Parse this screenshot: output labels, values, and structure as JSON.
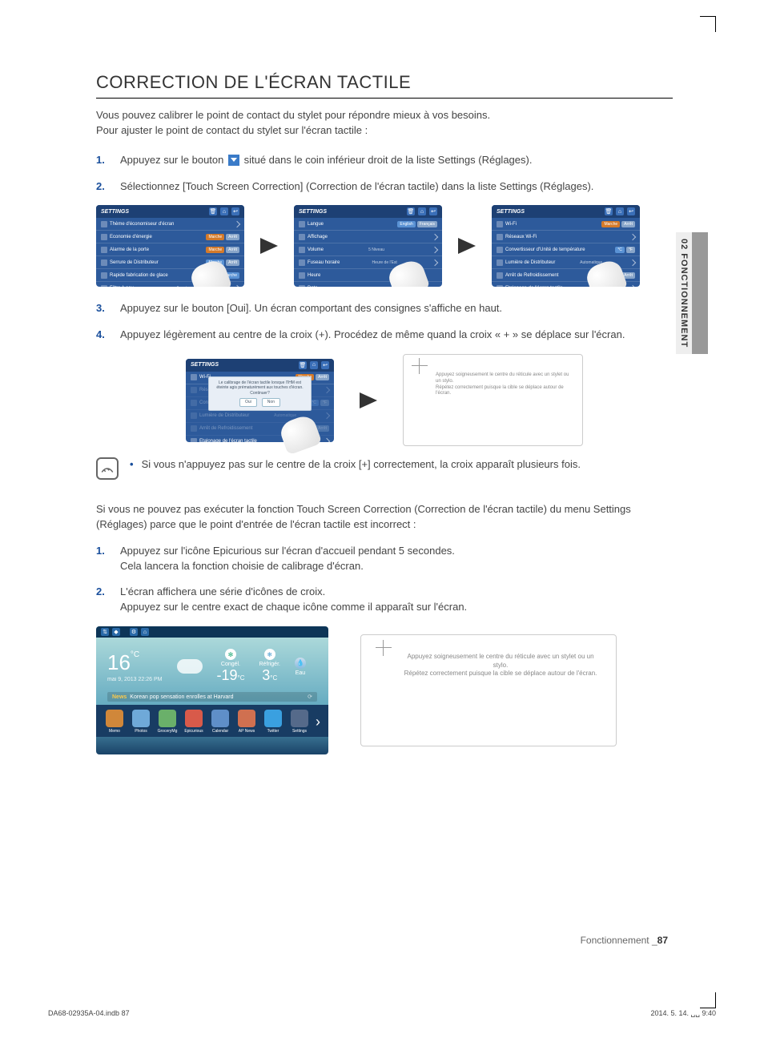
{
  "page": {
    "title": "CORRECTION DE L'ÉCRAN TACTILE",
    "intro1": "Vous pouvez calibrer le point de contact du stylet pour répondre mieux à vos besoins.",
    "intro2": "Pour ajuster le point de contact du stylet sur l'écran tactile :",
    "section_number": "87",
    "section_label": "Fonctionnement _",
    "side_tab": "02  FONCTIONNEMENT",
    "indd_left": "DA68-02935A-04.indb   87",
    "indd_right": "2014. 5. 14.   ␣␣ 9:40"
  },
  "steps1": [
    {
      "n": "1.",
      "pre": "Appuyez sur le bouton ",
      "post": " situé dans le coin inférieur droit de la liste Settings (Réglages)."
    },
    {
      "n": "2.",
      "txt": "Sélectionnez [Touch Screen Correction] (Correction de l'écran tactile) dans la liste Settings (Réglages)."
    }
  ],
  "steps2": [
    {
      "n": "3.",
      "txt": "Appuyez sur le bouton [Oui]. Un écran comportant des consignes s'affiche en haut."
    },
    {
      "n": "4.",
      "txt": "Appuyez légèrement au centre de la croix (+). Procédez de même quand la croix « + » se déplace sur l'écran."
    }
  ],
  "note_text": "Si vous n'appuyez pas sur le centre de la croix [+] correctement, la croix apparaît plusieurs fois.",
  "para2": "Si vous ne pouvez pas exécuter la fonction Touch Screen Correction (Correction de l'écran tactile) du menu Settings (Réglages) parce que le point d'entrée de l'écran tactile est incorrect :",
  "steps3": [
    {
      "n": "1.",
      "l1": "Appuyez sur l'icône Epicurious sur l'écran d'accueil pendant 5 secondes.",
      "l2": "Cela lancera la fonction choisie de calibrage d'écran."
    },
    {
      "n": "2.",
      "l1": "L'écran affichera une série d'icônes de croix.",
      "l2": "Appuyez sur le centre exact de chaque icône comme il apparaît sur l'écran."
    }
  ],
  "settings_panel": {
    "title": "SETTINGS",
    "screens": [
      {
        "rows": [
          {
            "label": "Thème d'économiseur d'écran",
            "right": {
              "type": "arrow"
            }
          },
          {
            "label": "Economie d'énergie",
            "right": {
              "type": "pair_o",
              "a": "Marche",
              "b": "Arrêt"
            }
          },
          {
            "label": "Alarme de la porte",
            "right": {
              "type": "pair_o",
              "a": "Marche",
              "b": "Arrêt"
            }
          },
          {
            "label": "Serrure de Distributeur",
            "right": {
              "type": "pair",
              "a": "Marche",
              "b": "Arrêt"
            }
          },
          {
            "label": "Rapide fabrication de glace",
            "right": {
              "type": "single",
              "a": "Marche"
            }
          },
          {
            "label": "Filtre à eau",
            "right": {
              "type": "text",
              "a": "6 mois"
            }
          }
        ]
      },
      {
        "rows": [
          {
            "label": "Langue",
            "right": {
              "type": "pair",
              "a": "English",
              "b": "Français"
            }
          },
          {
            "label": "Affichage",
            "right": {
              "type": "arrow"
            }
          },
          {
            "label": "Volume",
            "right": {
              "type": "text",
              "a": "5 Niveau"
            }
          },
          {
            "label": "Fuseau horaire",
            "right": {
              "type": "text",
              "a": "Heure de l'Est"
            }
          },
          {
            "label": "Heure",
            "right": {
              "type": "none"
            }
          },
          {
            "label": "Date",
            "right": {
              "type": "none"
            }
          }
        ]
      },
      {
        "rows": [
          {
            "label": "Wi-Fi",
            "right": {
              "type": "pair_o",
              "a": "Marche",
              "b": "Arrêt"
            }
          },
          {
            "label": "Réseaux Wi-Fi",
            "right": {
              "type": "arrow"
            }
          },
          {
            "label": "Convertisseur d'Unité de température",
            "right": {
              "type": "pair",
              "a": "°C",
              "b": "°F"
            }
          },
          {
            "label": "Lumière de Distributeur",
            "right": {
              "type": "text",
              "a": "Automatique"
            }
          },
          {
            "label": "Arrêt de Refroidissement",
            "right": {
              "type": "pair",
              "a": "Marche",
              "b": "Arrêt"
            }
          },
          {
            "label": "Etalonage de l'écran tactile",
            "right": {
              "type": "arrow"
            }
          }
        ]
      }
    ]
  },
  "dialog": {
    "text": "Le calibrage de l'écran tactile lorsque l'IHM est éteinte agis prématurément aux touches d'écran. Continuer?",
    "btn_yes": "Oui",
    "btn_no": "Non"
  },
  "calib_text": {
    "l1": "Appuyez soigneusement le centre du réticule avec un stylet ou un stylo.",
    "l2": "Répétez correctement puisque la cible se déplace autour de l'écran."
  },
  "home": {
    "big_temp": "16",
    "date": "mai 9, 2013 22:26 PM",
    "freezer_label": "Congél.",
    "freezer_temp": "-19",
    "fridge_label": "Réfrigér.",
    "fridge_temp": "3",
    "water_label": "Eau",
    "news_tag": "News",
    "news_text": "Korean pop sensation enrolles at Harvard",
    "apps": [
      {
        "name": "Memo",
        "color": "#d0873a"
      },
      {
        "name": "Photos",
        "color": "#6fa9d8"
      },
      {
        "name": "GroceryMg",
        "color": "#6ab06a"
      },
      {
        "name": "Epicurious",
        "color": "#d85a4a"
      },
      {
        "name": "Calendar",
        "color": "#5f8fc8"
      },
      {
        "name": "AP News",
        "color": "#d07050"
      },
      {
        "name": "Twitter",
        "color": "#3aa0e0"
      },
      {
        "name": "Settings",
        "color": "#556a8a"
      }
    ]
  },
  "colors": {
    "accent_blue": "#1a4f9c",
    "panel_blue": "#2d5a9b",
    "panel_header": "#1d4074",
    "orange_btn": "#d47a2a"
  }
}
